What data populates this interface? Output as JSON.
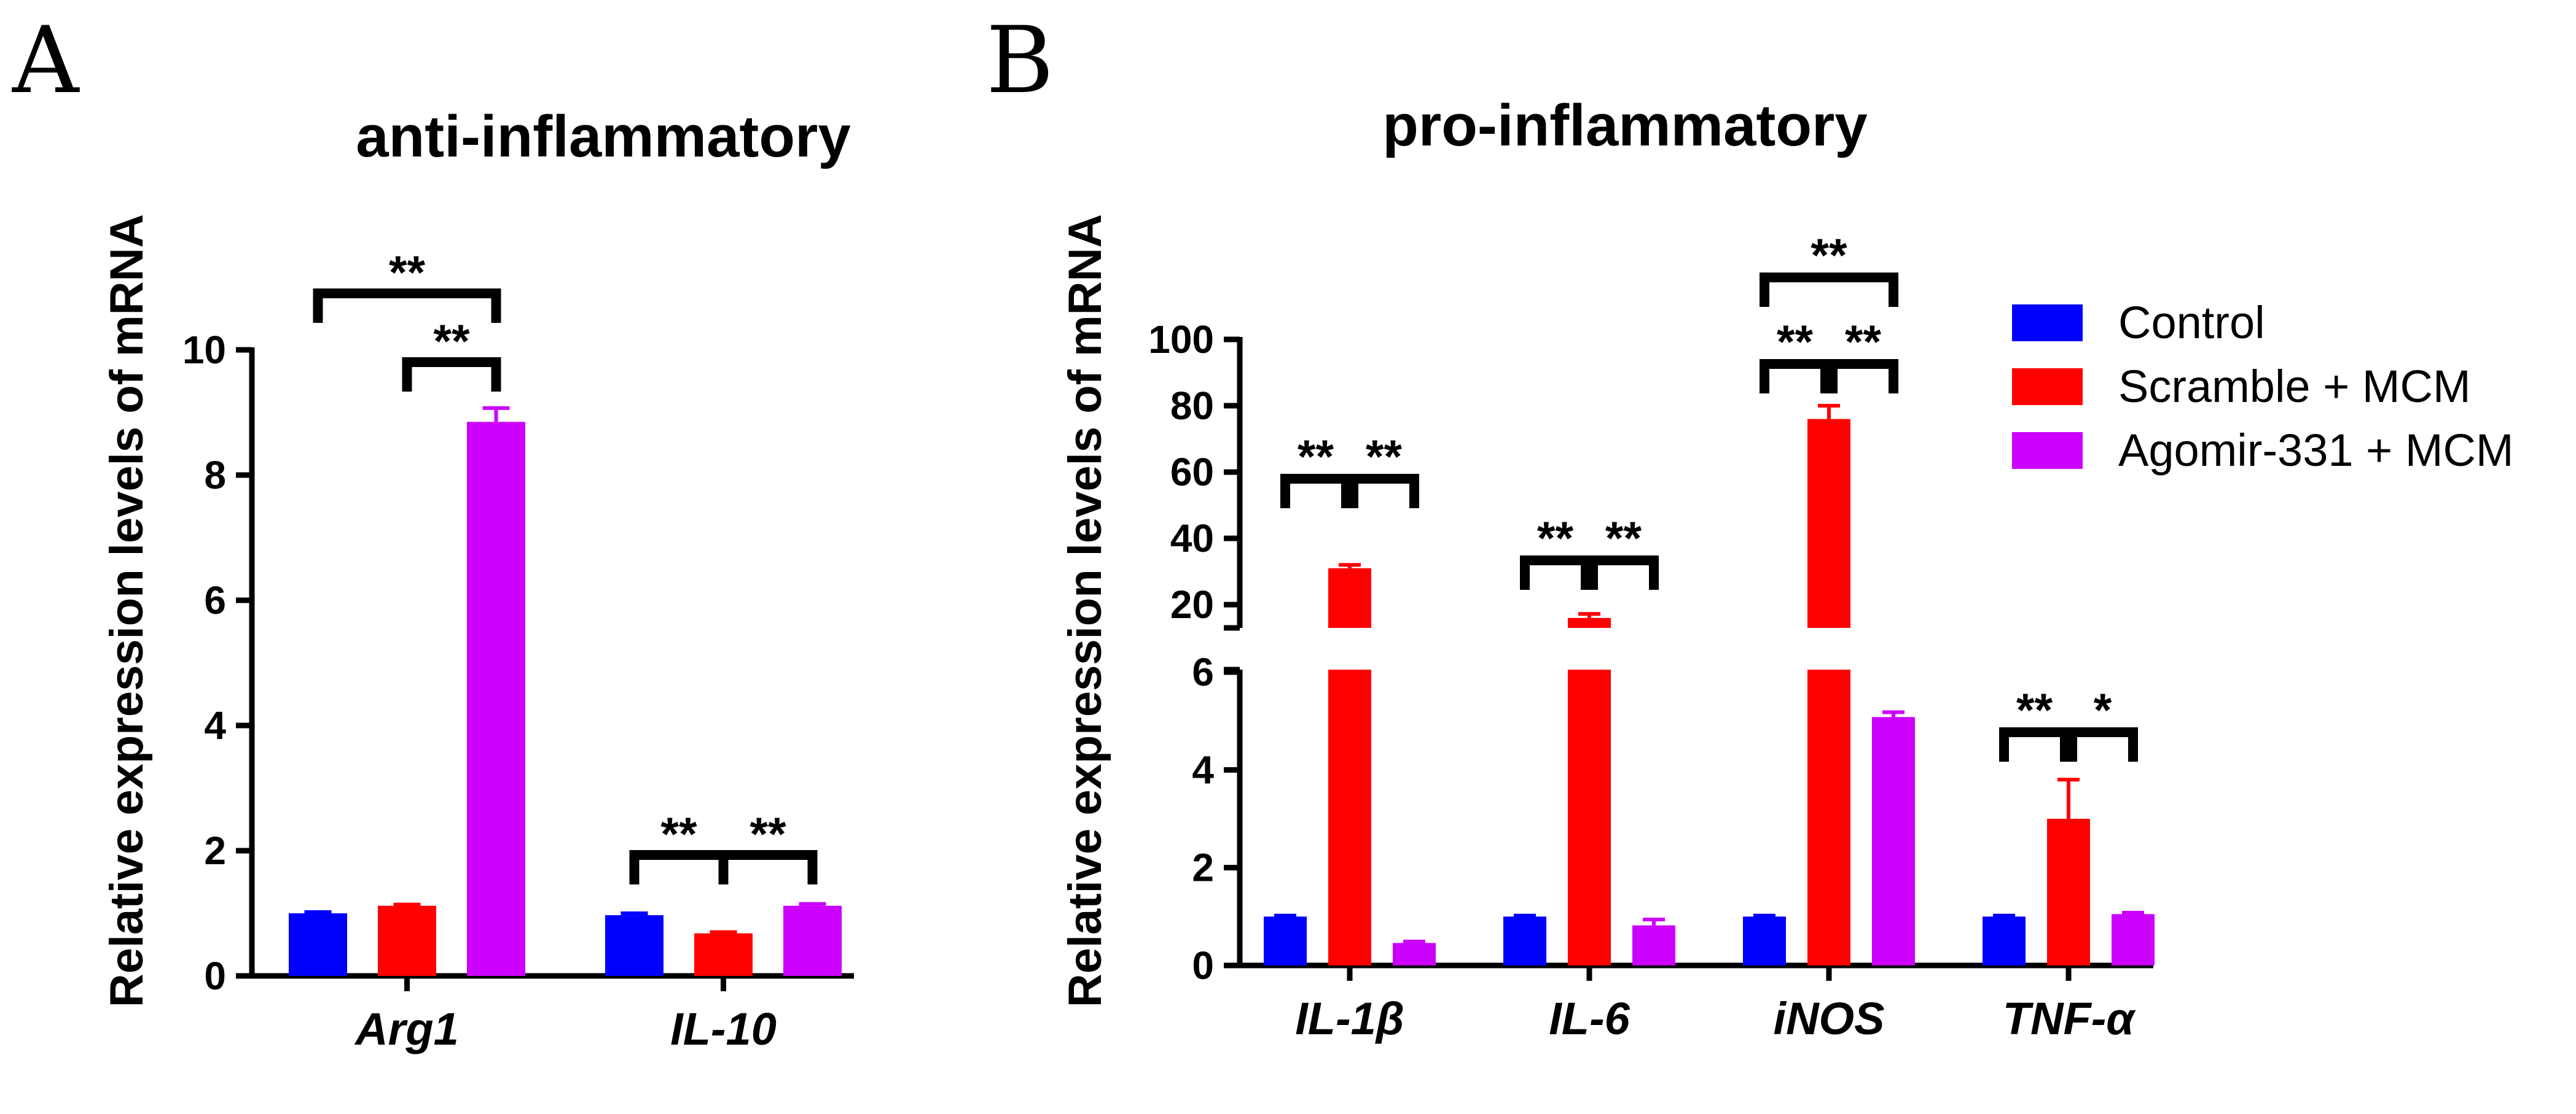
{
  "figure": {
    "panels": [
      "A",
      "B"
    ]
  },
  "legend": [
    {
      "name": "Control",
      "color": "#0000ff"
    },
    {
      "name": "Scramble + MCM",
      "color": "#ff0000"
    },
    {
      "name": "Agomir-331 + MCM",
      "color": "#cc00ff"
    }
  ],
  "chart_data": [
    {
      "panel": "A",
      "type": "bar",
      "title": "anti-inflammatory",
      "xlabel": "",
      "ylabel": "Relative expression levels of mRNA",
      "ylim": [
        0,
        10
      ],
      "yticks": [
        0,
        2,
        4,
        6,
        8,
        10
      ],
      "categories": [
        "Arg1",
        "IL-10"
      ],
      "series": [
        {
          "name": "Control",
          "color": "#0000ff",
          "values": [
            1.0,
            0.97
          ],
          "errors": [
            0.02,
            0.03
          ]
        },
        {
          "name": "Scramble + MCM",
          "color": "#ff0000",
          "values": [
            1.12,
            0.68
          ],
          "errors": [
            0.02,
            0.02
          ]
        },
        {
          "name": "Agomir-331 + MCM",
          "color": "#cc00ff",
          "values": [
            8.85,
            1.12
          ],
          "errors": [
            0.22,
            0.03
          ]
        }
      ],
      "significance": [
        {
          "category": "Arg1",
          "from": "Control",
          "to": "Agomir-331 + MCM",
          "label": "**",
          "level": 2
        },
        {
          "category": "Arg1",
          "from": "Scramble + MCM",
          "to": "Agomir-331 + MCM",
          "label": "**",
          "level": 1
        },
        {
          "category": "IL-10",
          "from": "Control",
          "to": "Scramble + MCM",
          "label": "**",
          "level": 1
        },
        {
          "category": "IL-10",
          "from": "Scramble + MCM",
          "to": "Agomir-331 + MCM",
          "label": "**",
          "level": 1
        }
      ]
    },
    {
      "panel": "B",
      "type": "bar",
      "title": "pro-inflammatory",
      "xlabel": "",
      "ylabel": "Relative expression levels of mRNA",
      "axis_break": {
        "lower_range": [
          0,
          6
        ],
        "upper_range": [
          13,
          100
        ]
      },
      "yticks_lower": [
        0,
        2,
        4,
        6
      ],
      "yticks_upper": [
        20,
        40,
        60,
        80,
        100
      ],
      "categories": [
        "IL-1β",
        "IL-6",
        "iNOS",
        "TNF-α"
      ],
      "series": [
        {
          "name": "Control",
          "color": "#0000ff",
          "values": [
            1.0,
            1.0,
            1.0,
            1.0
          ],
          "errors": [
            0.02,
            0.02,
            0.02,
            0.02
          ]
        },
        {
          "name": "Scramble + MCM",
          "color": "#ff0000",
          "values": [
            31,
            16,
            76,
            3.0
          ],
          "errors": [
            1.0,
            1.2,
            4.0,
            0.8
          ]
        },
        {
          "name": "Agomir-331 + MCM",
          "color": "#cc00ff",
          "values": [
            0.46,
            0.82,
            5.08,
            1.05
          ],
          "errors": [
            0.03,
            0.12,
            0.1,
            0.03
          ]
        }
      ],
      "significance": [
        {
          "category": "IL-1β",
          "from": "Control",
          "to": "Scramble + MCM",
          "label": "**",
          "level": 1
        },
        {
          "category": "IL-1β",
          "from": "Scramble + MCM",
          "to": "Agomir-331 + MCM",
          "label": "**",
          "level": 1
        },
        {
          "category": "IL-6",
          "from": "Control",
          "to": "Scramble + MCM",
          "label": "**",
          "level": 1
        },
        {
          "category": "IL-6",
          "from": "Scramble + MCM",
          "to": "Agomir-331 + MCM",
          "label": "**",
          "level": 1
        },
        {
          "category": "iNOS",
          "from": "Control",
          "to": "Agomir-331 + MCM",
          "label": "**",
          "level": 2
        },
        {
          "category": "iNOS",
          "from": "Control",
          "to": "Scramble + MCM",
          "label": "**",
          "level": 1
        },
        {
          "category": "iNOS",
          "from": "Scramble + MCM",
          "to": "Agomir-331 + MCM",
          "label": "**",
          "level": 1
        },
        {
          "category": "TNF-α",
          "from": "Control",
          "to": "Scramble + MCM",
          "label": "**",
          "level": 1
        },
        {
          "category": "TNF-α",
          "from": "Scramble + MCM",
          "to": "Agomir-331 + MCM",
          "label": "*",
          "level": 1
        }
      ]
    }
  ]
}
